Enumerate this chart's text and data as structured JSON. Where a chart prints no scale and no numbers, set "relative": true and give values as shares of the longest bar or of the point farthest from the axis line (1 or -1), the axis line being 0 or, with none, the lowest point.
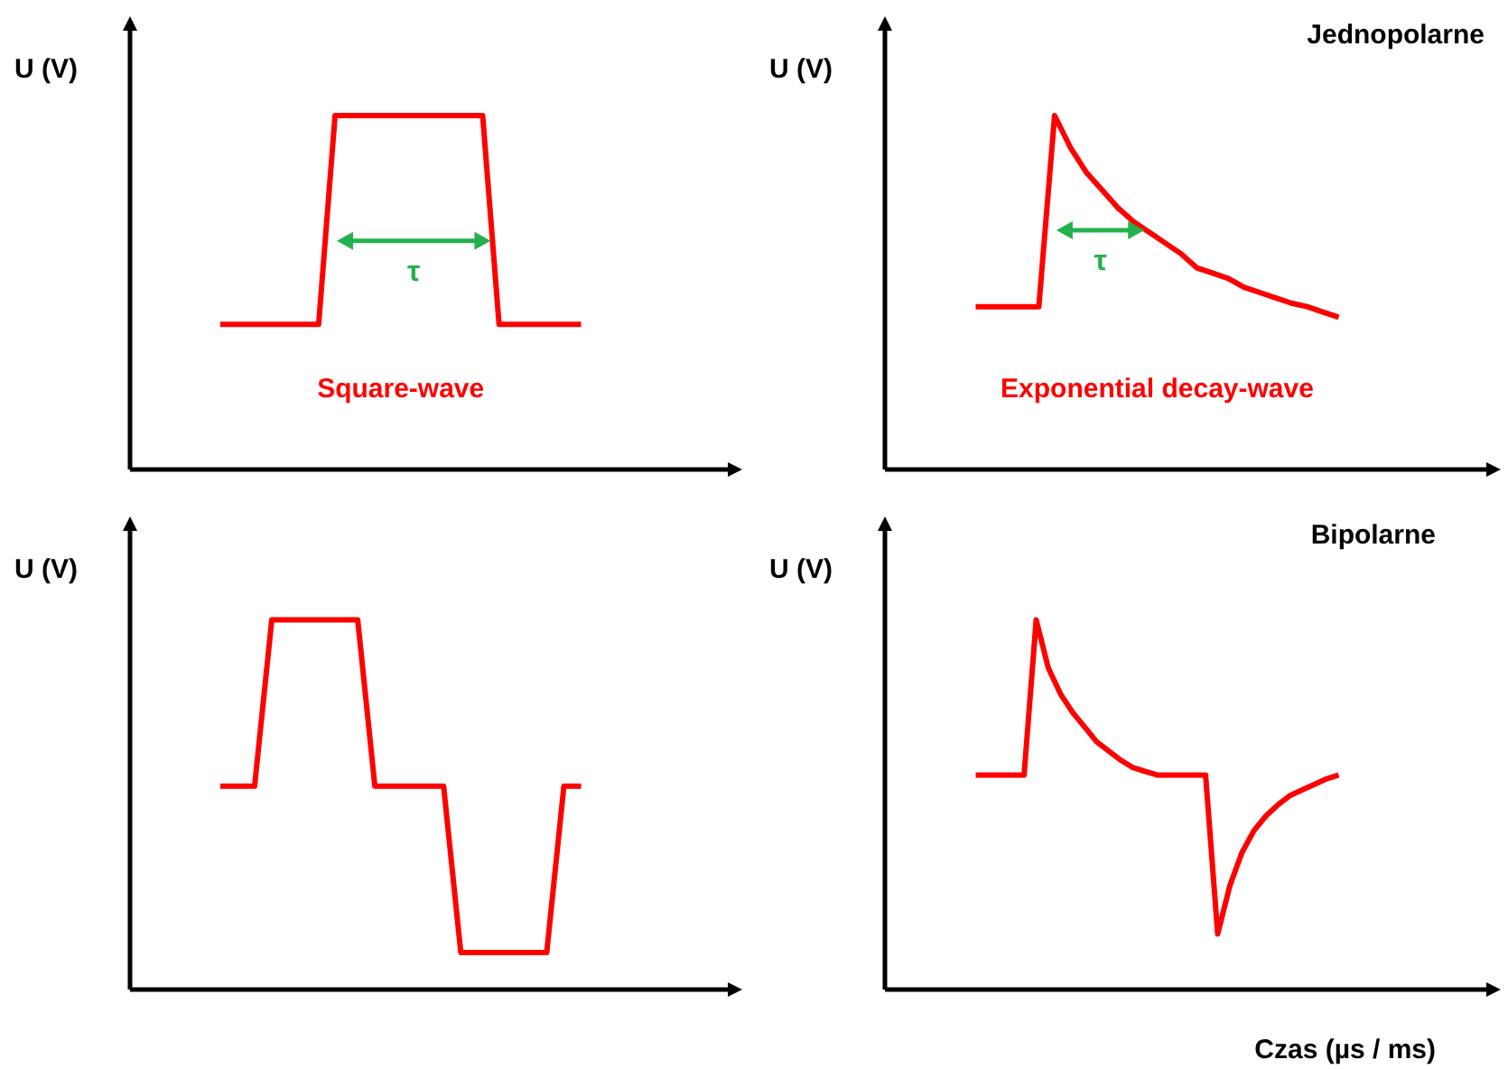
{
  "chart_data": [
    {
      "type": "line",
      "relative": true,
      "ylabel": "U (V)",
      "line_style": "solid",
      "annotations": [
        "τ",
        "Square-wave"
      ],
      "categories": [
        null,
        null,
        null,
        null,
        null,
        null,
        null,
        null,
        null,
        null,
        null,
        null,
        null,
        null,
        null,
        null,
        null,
        null,
        null,
        null,
        null,
        null,
        null
      ],
      "series": [
        {
          "color": "#ff0000",
          "values": [
            0.41,
            0.41,
            0.41,
            0.41,
            0.41,
            0.41,
            0.41,
            1,
            1,
            1,
            1,
            1,
            1,
            1,
            1,
            1,
            1,
            0.41,
            0.41,
            0.41,
            0.41,
            0.41,
            0.41
          ]
        }
      ]
    },
    {
      "type": "line",
      "relative": true,
      "title": "Jednopolarne",
      "ylabel": "U (V)",
      "line_style": "solid",
      "annotations": [
        "τ",
        "Exponential decay-wave"
      ],
      "categories": [
        null,
        null,
        null,
        null,
        null,
        null,
        null,
        null,
        null,
        null,
        null,
        null,
        null,
        null,
        null,
        null,
        null,
        null,
        null,
        null,
        null,
        null,
        null,
        null
      ],
      "series": [
        {
          "color": "#ff0000",
          "values": [
            0.46,
            0.46,
            0.46,
            0.46,
            0.46,
            1,
            0.91,
            0.84,
            0.79,
            0.74,
            0.7,
            0.67,
            0.64,
            0.61,
            0.57,
            0.555,
            0.54,
            0.515,
            0.5,
            0.485,
            0.47,
            0.46,
            0.445,
            0.43
          ]
        }
      ]
    },
    {
      "type": "line",
      "relative": true,
      "ylabel": "U (V)",
      "line_style": "solid",
      "categories": [
        null,
        null,
        null,
        null,
        null,
        null,
        null,
        null,
        null,
        null,
        null,
        null,
        null,
        null,
        null,
        null,
        null,
        null,
        null,
        null,
        null,
        null
      ],
      "series": [
        {
          "color": "#ff0000",
          "values": [
            0.55,
            0.55,
            0.55,
            1,
            1,
            1,
            1,
            1,
            1,
            0.55,
            0.55,
            0.55,
            0.55,
            0.55,
            0.1,
            0.1,
            0.1,
            0.1,
            0.1,
            0.1,
            0.55,
            0.55
          ]
        }
      ]
    },
    {
      "type": "line",
      "relative": true,
      "title": "Bipolarne",
      "ylabel": "U (V)",
      "xlabel": "Czas (µs / ms)",
      "line_style": "solid",
      "categories": [
        null,
        null,
        null,
        null,
        null,
        null,
        null,
        null,
        null,
        null,
        null,
        null,
        null,
        null,
        null,
        null,
        null,
        null,
        null,
        null,
        null,
        null,
        null,
        null,
        null,
        null,
        null,
        null,
        null,
        null,
        null
      ],
      "series": [
        {
          "color": "#ff0000",
          "values": [
            0.58,
            0.58,
            0.58,
            0.58,
            0.58,
            1,
            0.87,
            0.8,
            0.75,
            0.71,
            0.67,
            0.645,
            0.62,
            0.6,
            0.59,
            0.58,
            0.58,
            0.58,
            0.58,
            0.58,
            0.15,
            0.28,
            0.37,
            0.43,
            0.47,
            0.5,
            0.525,
            0.54,
            0.555,
            0.57,
            0.58
          ]
        }
      ]
    }
  ]
}
